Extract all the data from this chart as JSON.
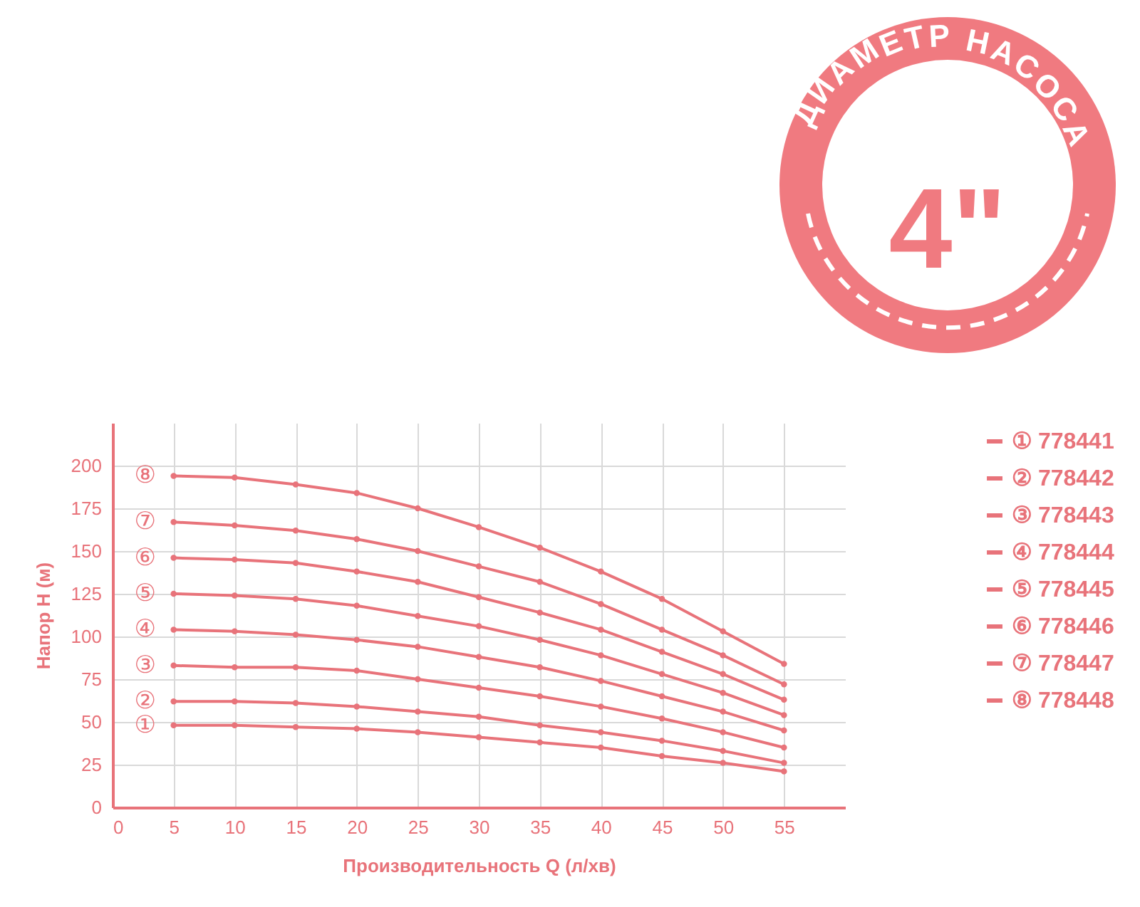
{
  "chart_data": {
    "type": "line",
    "xlabel": "Производительность Q (л/хв)",
    "ylabel": "Напор H (м)",
    "x": [
      5,
      10,
      15,
      20,
      25,
      30,
      35,
      40,
      45,
      50,
      55
    ],
    "xlim": [
      0,
      60
    ],
    "xticks": [
      0,
      5,
      10,
      15,
      20,
      25,
      30,
      35,
      40,
      45,
      50,
      55
    ],
    "ylim": [
      0,
      225
    ],
    "yticks": [
      0,
      25,
      50,
      75,
      100,
      125,
      150,
      175,
      200
    ],
    "grid": true,
    "marker": "circle",
    "legend": "right",
    "series": [
      {
        "name": "① 778441",
        "color": "#e8737a",
        "values": [
          48,
          48,
          47,
          46,
          44,
          41,
          38,
          35,
          30,
          26,
          21
        ]
      },
      {
        "name": "② 778442",
        "color": "#e8737a",
        "values": [
          62,
          62,
          61,
          59,
          56,
          53,
          48,
          44,
          39,
          33,
          26
        ]
      },
      {
        "name": "③ 778443",
        "color": "#e8737a",
        "values": [
          83,
          82,
          82,
          80,
          75,
          70,
          65,
          59,
          52,
          44,
          35
        ]
      },
      {
        "name": "④ 778444",
        "color": "#e8737a",
        "values": [
          104,
          103,
          101,
          98,
          94,
          88,
          82,
          74,
          65,
          56,
          45
        ]
      },
      {
        "name": "⑤ 778445",
        "color": "#e8737a",
        "values": [
          125,
          124,
          122,
          118,
          112,
          106,
          98,
          89,
          78,
          67,
          54
        ]
      },
      {
        "name": "⑥ 778446",
        "color": "#e8737a",
        "values": [
          146,
          145,
          143,
          138,
          132,
          123,
          114,
          104,
          91,
          78,
          63
        ]
      },
      {
        "name": "⑦ 778447",
        "color": "#e8737a",
        "values": [
          167,
          165,
          162,
          157,
          150,
          141,
          132,
          119,
          104,
          89,
          72
        ]
      },
      {
        "name": "⑧ 778448",
        "color": "#e8737a",
        "values": [
          194,
          193,
          189,
          184,
          175,
          164,
          152,
          138,
          122,
          103,
          84
        ]
      }
    ],
    "annotations": [
      "ДИАМЕТР НАСОСА",
      "4\"",
      "①",
      "②",
      "③",
      "④",
      "⑤",
      "⑥",
      "⑦",
      "⑧"
    ]
  }
}
